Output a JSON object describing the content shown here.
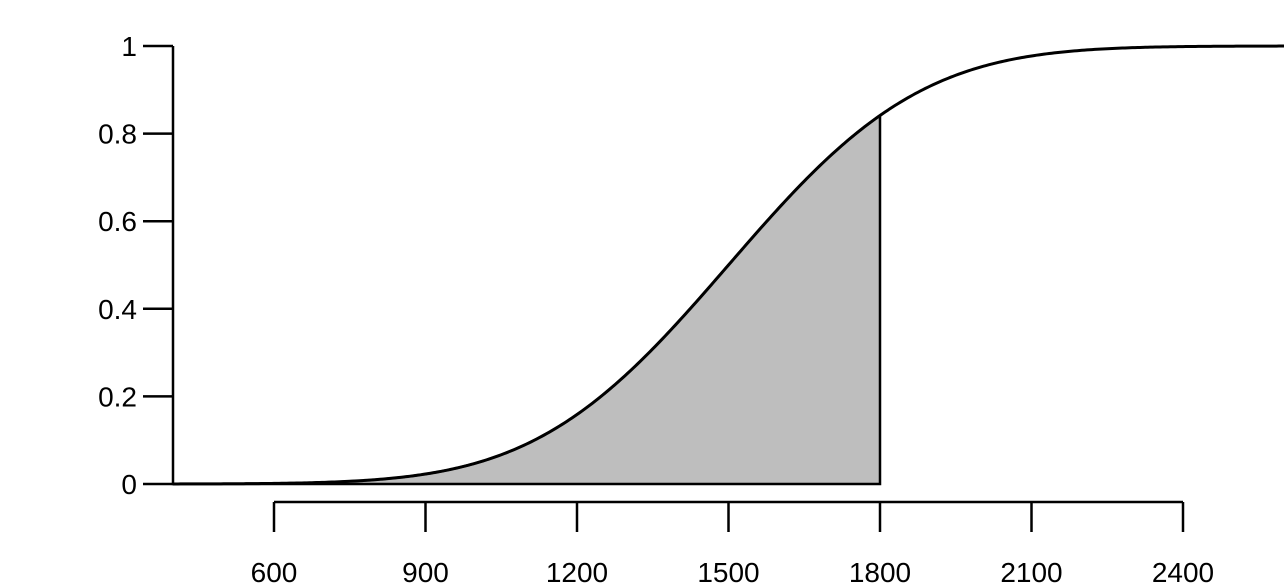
{
  "chart_data": {
    "type": "area",
    "title": "",
    "xlabel": "",
    "ylabel": "",
    "distribution": {
      "family": "normal",
      "mean": 1500,
      "sd": 300
    },
    "curve_x_range": [
      400,
      2600
    ],
    "shaded_region": {
      "from": 400,
      "to": 1800,
      "fill": "#bebebe"
    },
    "xlim": [
      400,
      2600
    ],
    "ylim": [
      0,
      1
    ],
    "x_ticks": [
      600,
      900,
      1200,
      1500,
      1800,
      2100,
      2400
    ],
    "x_tick_labels": [
      "600",
      "900",
      "1200",
      "1500",
      "1800",
      "2100",
      "2400"
    ],
    "y_ticks": [
      0,
      0.2,
      0.4,
      0.6,
      0.8,
      1
    ],
    "y_tick_labels": [
      "0",
      "0.2",
      "0.4",
      "0.6",
      "0.8",
      "1"
    ],
    "grid": false,
    "curve_color": "#000000"
  }
}
